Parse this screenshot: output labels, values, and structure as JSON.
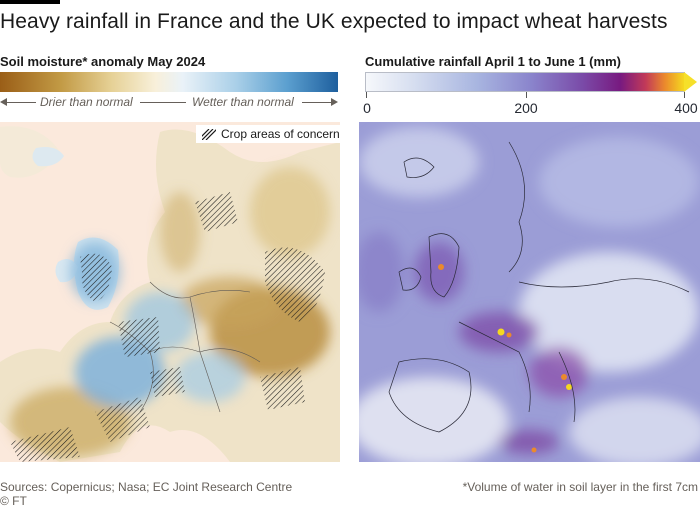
{
  "title": "Heavy rainfall in France and the UK expected to impact wheat harvests",
  "left_panel": {
    "subtitle": "Soil moisture* anomaly May 2024",
    "drier_label": "Drier than normal",
    "wetter_label": "Wetter than normal",
    "legend_label": "Crop areas of concern",
    "colors": {
      "drier": "#9a5e17",
      "neutral": "#f8f0da",
      "wetter": "#1e5f9e",
      "background": "#fbe9dc"
    }
  },
  "right_panel": {
    "subtitle": "Cumulative rainfall April 1 to June 1 (mm)",
    "ticks": [
      "0",
      "200",
      "400"
    ],
    "scale_range": [
      0,
      400
    ],
    "colors": {
      "low": "#f6f8fb",
      "mid": "#8a84cc",
      "high": "#781a80",
      "max": "#f5d820"
    }
  },
  "footer": {
    "sources": "Sources: Copernicus; Nasa; EC Joint Research Centre",
    "note": "*Volume of water in soil layer in the first 7cm",
    "credit": "© FT"
  }
}
